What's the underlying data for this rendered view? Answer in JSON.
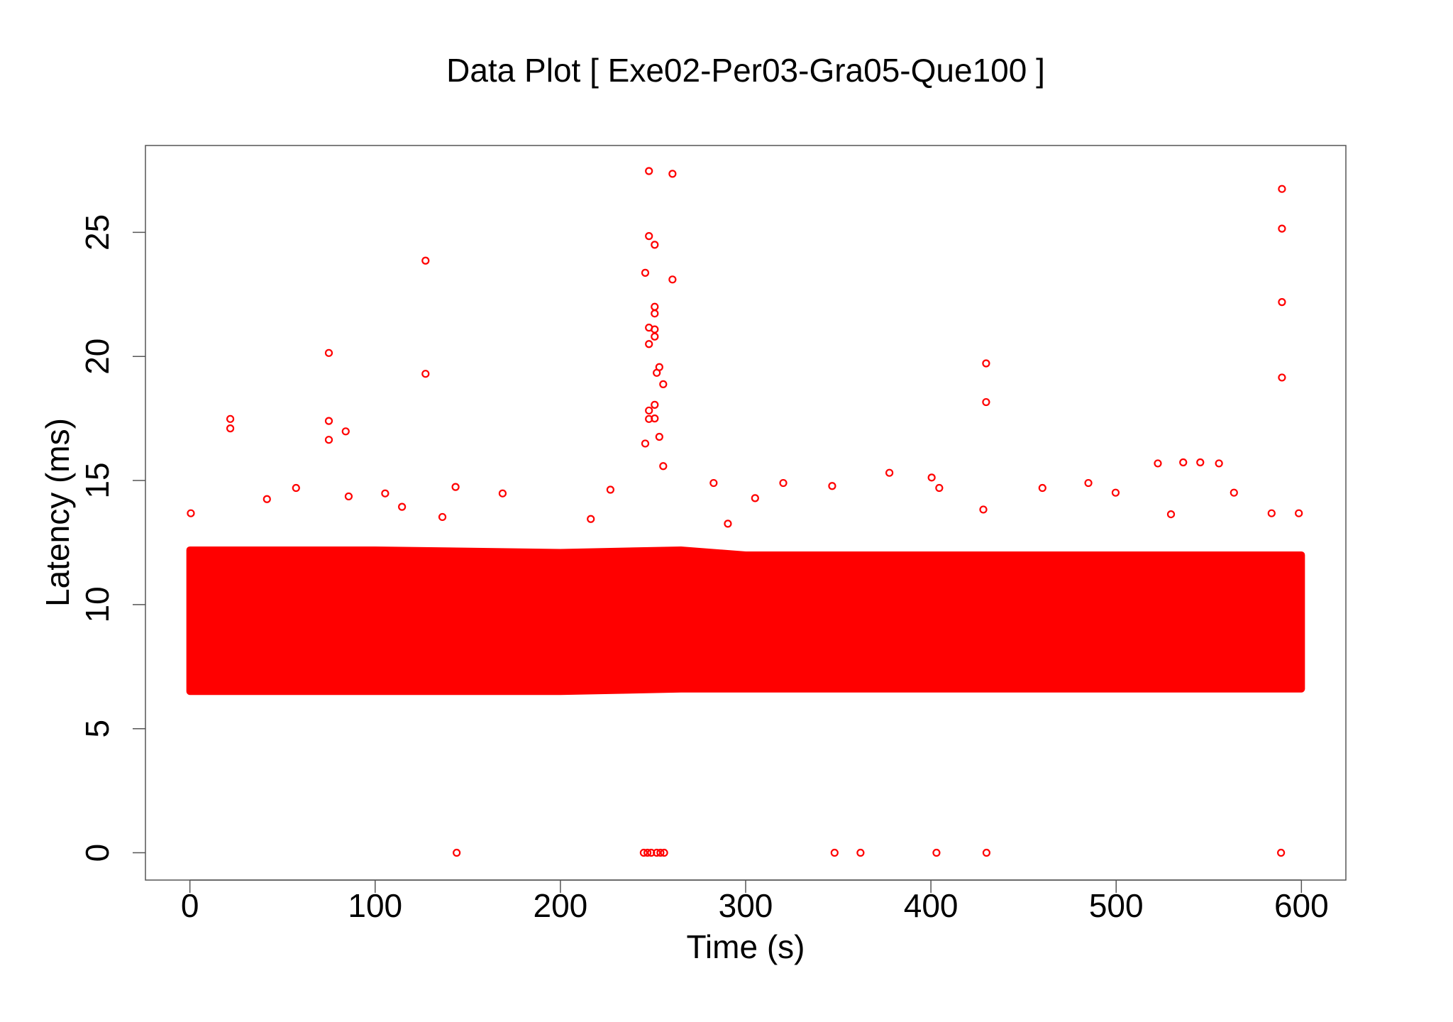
{
  "chart_data": {
    "type": "scatter",
    "title": "Data Plot [ Exe02-Per03-Gra05-Que100 ]",
    "x_label": "Time (s)",
    "y_label": "Latency (ms)",
    "xlim": [
      -24,
      624
    ],
    "xticks": [
      0,
      100,
      200,
      300,
      400,
      500,
      600
    ],
    "ylim": [
      -1.1,
      28.5
    ],
    "yticks": [
      0,
      5,
      10,
      15,
      20,
      25
    ],
    "grid": false,
    "color": "#ff0000",
    "band": {
      "x": [
        0,
        100,
        200,
        265,
        300,
        600
      ],
      "high": [
        12.2,
        12.2,
        12.1,
        12.2,
        12.0,
        12.0
      ],
      "low": [
        6.5,
        6.5,
        6.5,
        6.6,
        6.6,
        6.6
      ]
    },
    "series": [
      {
        "color": "#ff0000",
        "x": [
          247.8,
          260.5,
          589.5,
          589.5,
          127.2,
          247.8,
          250.9,
          245.8,
          260.5,
          250.9,
          250.9,
          247.8,
          250.9,
          250.9,
          247.8,
          75,
          589.5,
          589.5,
          127.2,
          429.8,
          429.8,
          253.4,
          252,
          255.5,
          21.8,
          21.8,
          75,
          84.1,
          75,
          247.8,
          250.9,
          247.8,
          250.9,
          253.4,
          245.8,
          255.5,
          536.2,
          522.5,
          545.4,
          555.5,
          144,
          245,
          247,
          249,
          252,
          254,
          256,
          348,
          362,
          403,
          430,
          589,
          57.3,
          143.4,
          105.4,
          168.8,
          227,
          282.7,
          320.3,
          346.7,
          377.6,
          400.4,
          404.5,
          485,
          460.2,
          499.7,
          563.6,
          583.9,
          598.6,
          0.5,
          41.6,
          85.7,
          114.5,
          290.4,
          305.1,
          428.3,
          529.6,
          216.4,
          136.3
        ],
        "values": [
          27.47,
          27.36,
          26.75,
          25.15,
          23.86,
          24.85,
          24.5,
          23.37,
          23.1,
          22.0,
          21.73,
          21.16,
          21.09,
          20.8,
          20.5,
          20.14,
          22.19,
          19.15,
          19.3,
          19.72,
          18.16,
          19.57,
          19.34,
          18.88,
          17.48,
          17.1,
          17.4,
          16.98,
          16.64,
          17.82,
          18.05,
          17.48,
          17.5,
          16.76,
          16.49,
          15.58,
          15.73,
          15.69,
          15.73,
          15.69,
          0,
          0,
          0,
          0,
          0,
          0,
          0,
          0,
          0,
          0,
          0,
          0,
          14.7,
          14.74,
          14.48,
          14.48,
          14.63,
          14.9,
          14.9,
          14.78,
          15.31,
          15.12,
          14.7,
          14.9,
          14.7,
          14.51,
          14.51,
          13.68,
          13.68,
          13.68,
          14.25,
          14.36,
          13.94,
          13.26,
          14.29,
          13.83,
          13.64,
          13.45,
          13.53
        ]
      }
    ]
  }
}
